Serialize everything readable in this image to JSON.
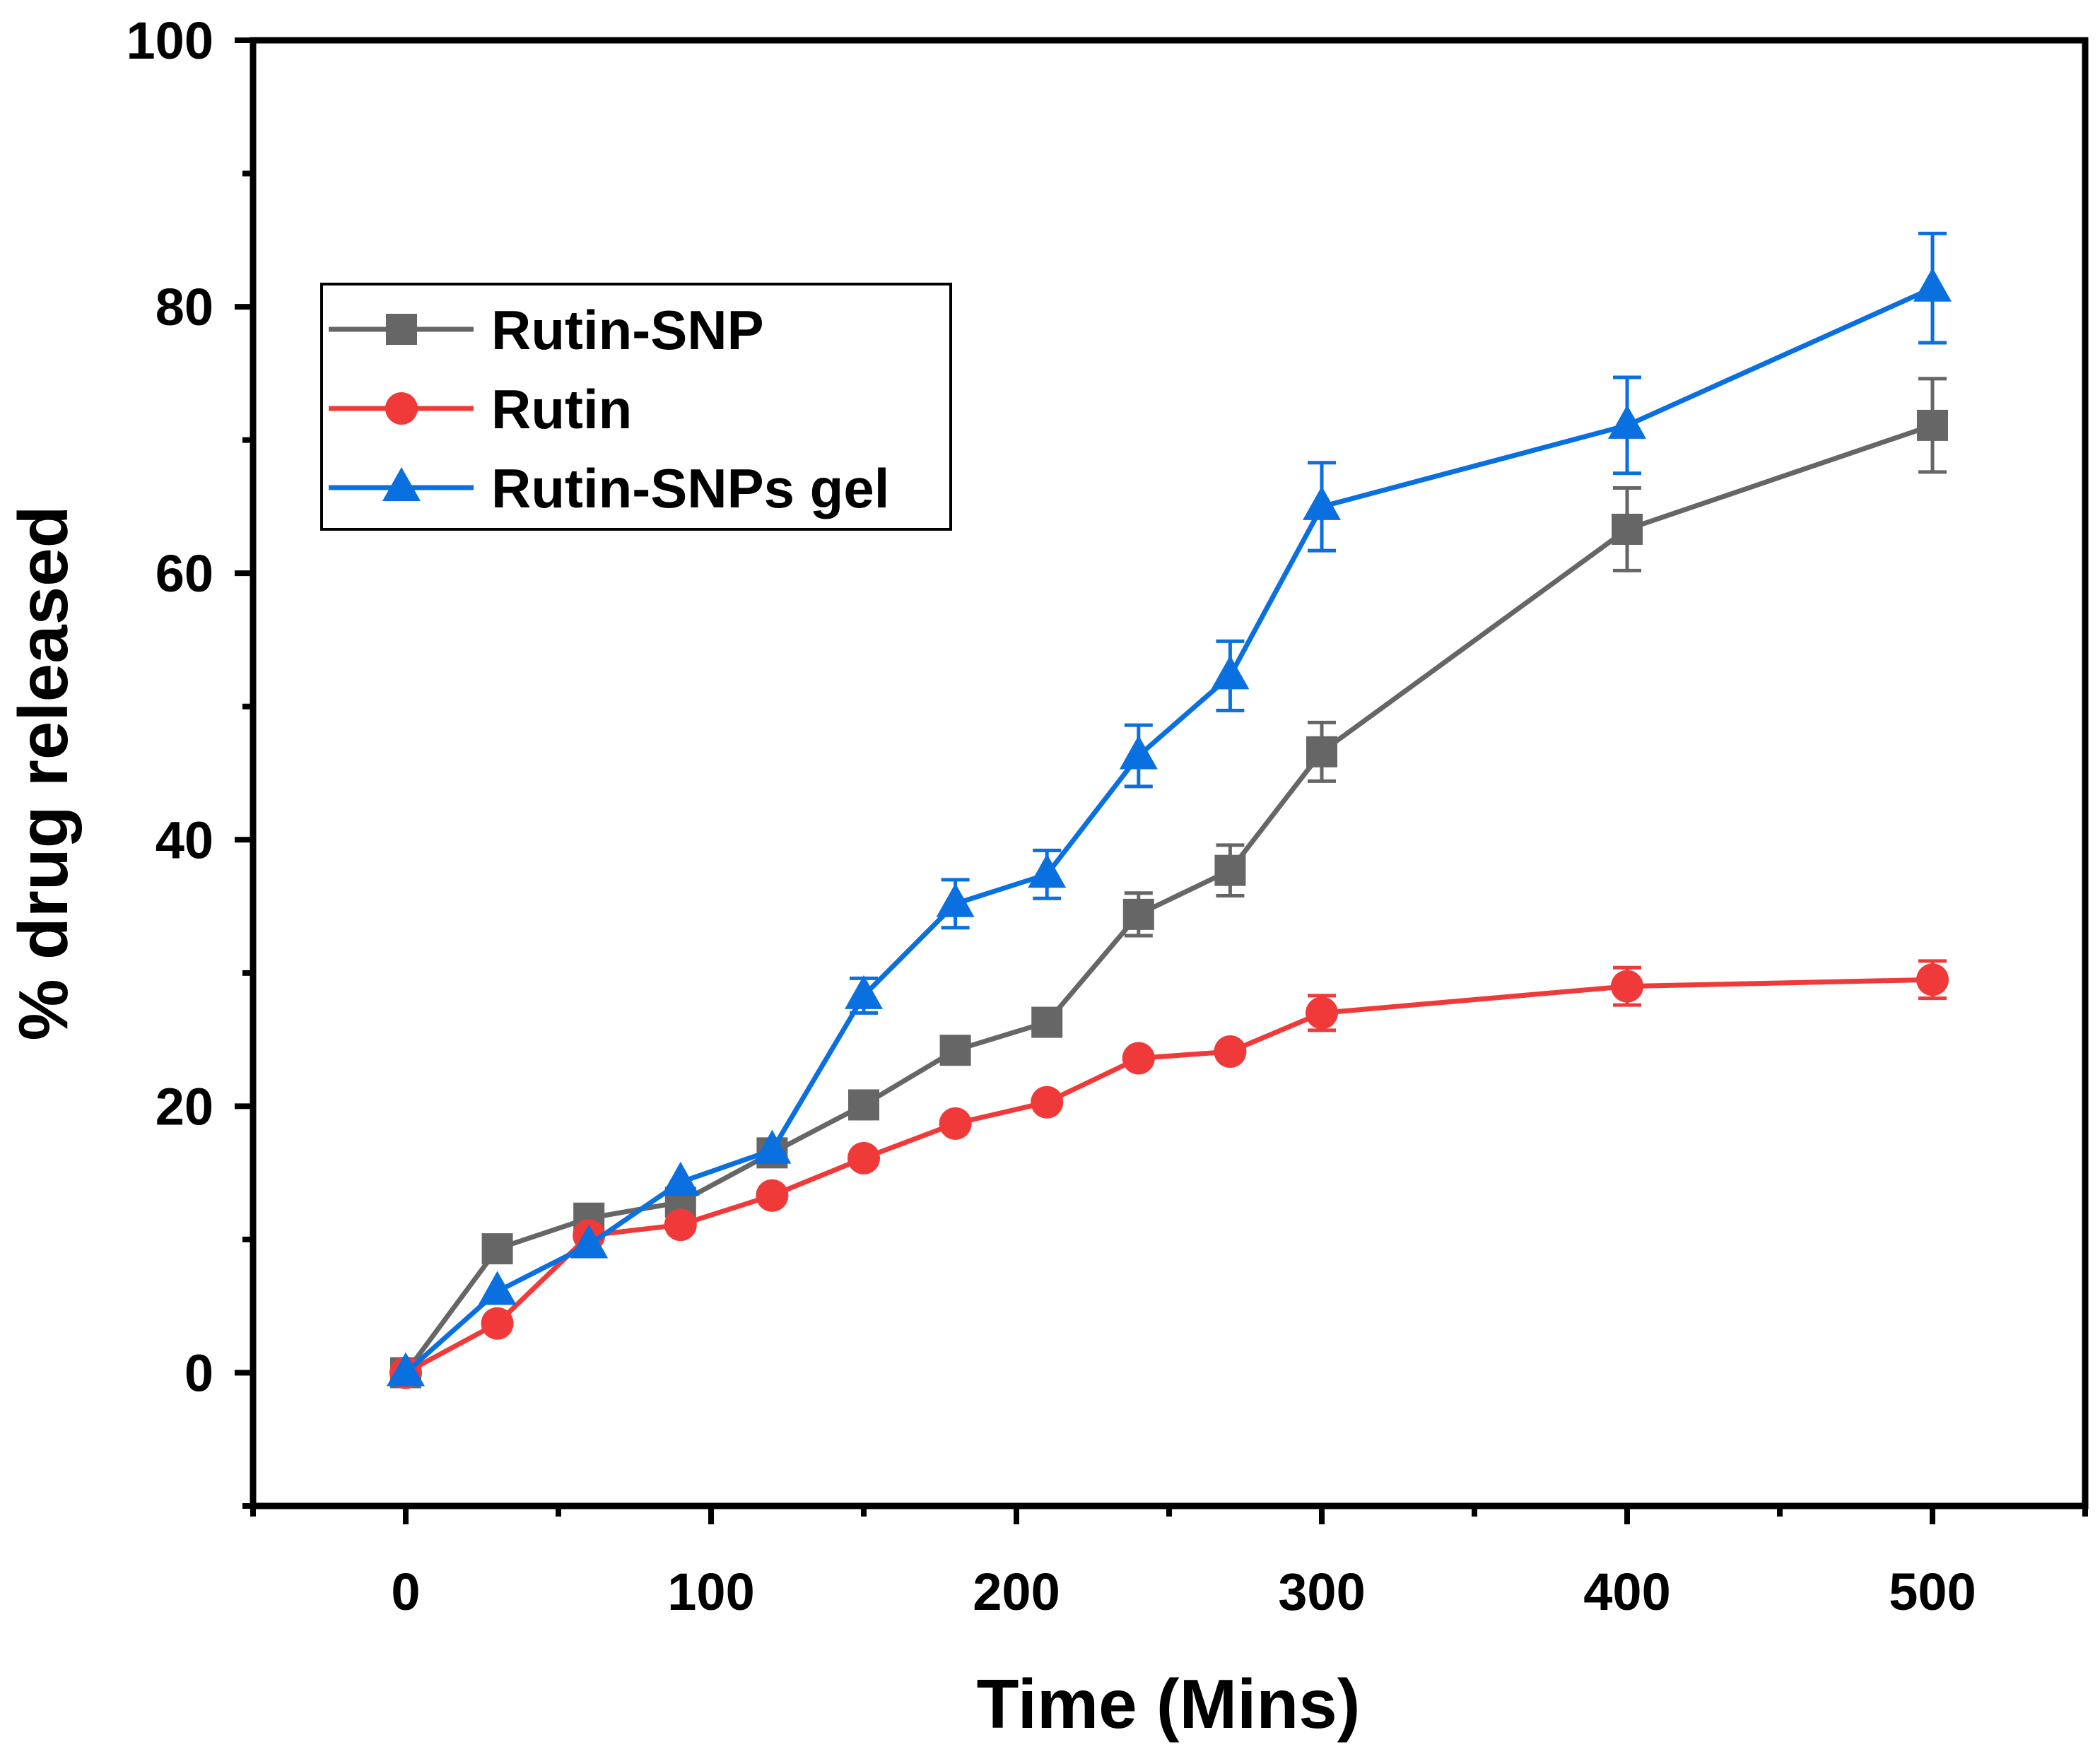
{
  "chart_data": {
    "type": "line",
    "title": "",
    "xlabel": "Time (Mins)",
    "ylabel": "% drug released",
    "xlim": [
      -50,
      550
    ],
    "ylim": [
      -10,
      100
    ],
    "x_ticks": [
      0,
      100,
      200,
      300,
      400,
      500
    ],
    "x_minor_ticks": [
      -50,
      50,
      150,
      250,
      350,
      450,
      550
    ],
    "y_ticks": [
      0,
      20,
      40,
      60,
      80,
      100
    ],
    "y_minor_ticks": [
      -10,
      10,
      30,
      50,
      70,
      90
    ],
    "x": [
      0,
      30,
      60,
      90,
      120,
      150,
      180,
      210,
      240,
      270,
      300,
      400,
      500
    ],
    "legend_position": "upper-left",
    "series": [
      {
        "name": "Rutin-SNP",
        "color": "#666666",
        "marker": "square",
        "values": [
          0,
          9.3,
          11.6,
          12.8,
          16.5,
          20.1,
          24.2,
          26.3,
          34.4,
          37.7,
          46.6,
          63.3,
          71.1
        ],
        "errors": [
          0,
          0,
          0,
          0,
          0,
          0,
          0,
          0,
          1.6,
          1.9,
          2.2,
          3.1,
          3.5
        ]
      },
      {
        "name": "Rutin",
        "color": "#f03a3a",
        "marker": "circle",
        "values": [
          0,
          3.7,
          10.3,
          11.1,
          13.3,
          16.1,
          18.7,
          20.3,
          23.6,
          24.1,
          27.0,
          29.0,
          29.5
        ],
        "errors": [
          0,
          0,
          0,
          0,
          0,
          0,
          0,
          0,
          0,
          0,
          1.3,
          1.4,
          1.4
        ]
      },
      {
        "name": "Rutin-SNPs gel",
        "color": "#0a6fdf",
        "marker": "triangle",
        "values": [
          0,
          6.1,
          9.6,
          14.3,
          16.7,
          28.3,
          35.2,
          37.4,
          46.3,
          52.3,
          65.0,
          71.1,
          81.4
        ],
        "errors": [
          0,
          0,
          0,
          0,
          0,
          1.3,
          1.8,
          1.8,
          2.3,
          2.6,
          3.3,
          3.6,
          4.1
        ]
      }
    ]
  }
}
